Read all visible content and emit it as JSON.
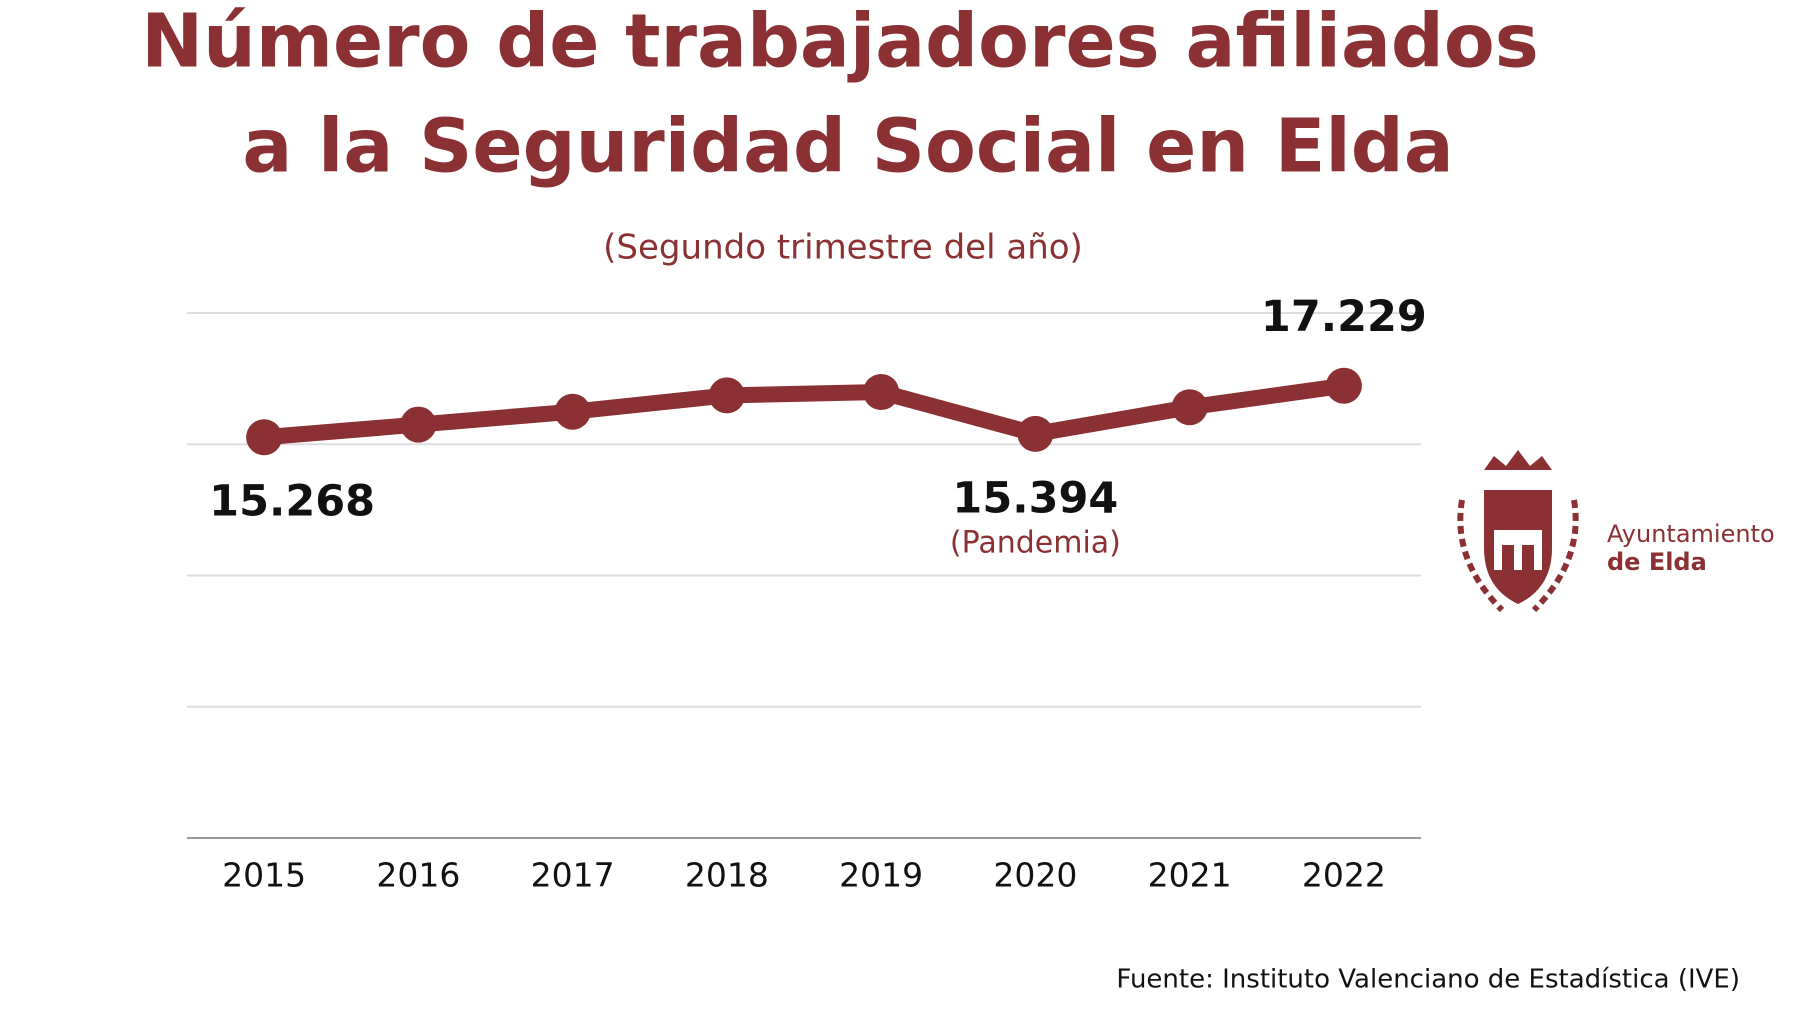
{
  "chart_data": {
    "type": "line",
    "title": [
      "Número de trabajadores afiliados",
      "a la Seguridad Social en Elda"
    ],
    "subtitle": "(Segundo trimestre del año)",
    "categories": [
      "2015",
      "2016",
      "2017",
      "2018",
      "2019",
      "2020",
      "2021",
      "2022"
    ],
    "series": [
      {
        "name": "Trabajadores afiliados",
        "color": "#8b3033",
        "values": [
          15268,
          15750,
          16240,
          16860,
          16990,
          15394,
          16410,
          17229
        ],
        "value_labels": [
          "15.268",
          null,
          null,
          null,
          null,
          "15.394",
          null,
          "17.229"
        ]
      }
    ],
    "annotation": "(Pandemia)",
    "source": "Fuente: Instituto Valenciano de Estadística (IVE)",
    "ylim": [
      0,
      20000
    ],
    "yticks": [
      0,
      5000,
      10000,
      15000,
      20000
    ],
    "grid": true
  },
  "logo": {
    "line1": "Ayuntamiento",
    "line2": "de Elda"
  }
}
